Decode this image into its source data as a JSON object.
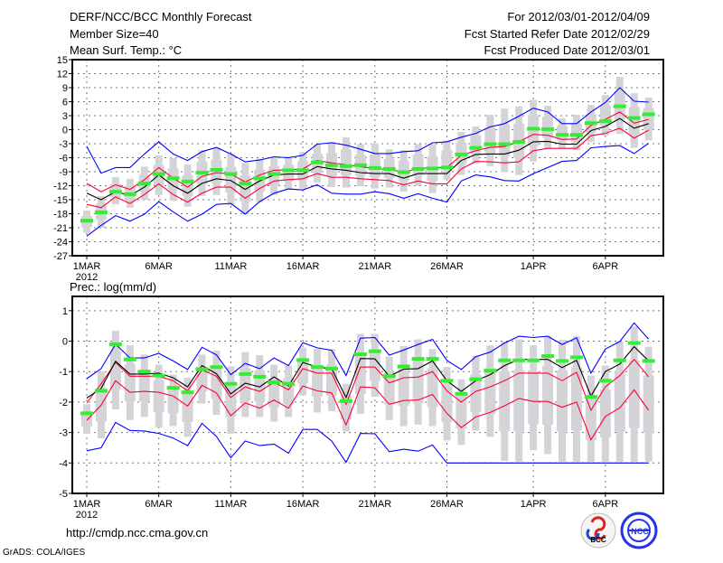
{
  "header": {
    "title": "DERF/NCC/BCC Monthly Forecast",
    "member_size": "Member Size=40",
    "variable": "Mean Surf. Temp.: °C",
    "period": "For 2012/03/01-2012/04/09",
    "started": "Fcst Started Refer Date 2012/02/29",
    "produced": "Fcst Produced Date 2012/03/01"
  },
  "footer": {
    "url": "http://cmdp.ncc.cma.gov.cn",
    "grads": "GrADS: COLA/IGES",
    "logo_bcc": "BCC",
    "logo_ncc": "NCC"
  },
  "colors": {
    "envelope": "#0000ff",
    "spread": "#ff0033",
    "mean": "#000000",
    "obs": "#33ee33",
    "range": "#d4d4d8"
  },
  "chart_data": [
    {
      "type": "line",
      "title": "Mean Surf. Temp.: °C",
      "xlabel": "",
      "ylabel": "",
      "ylim": [
        -27,
        15
      ],
      "yticks": [
        15,
        12,
        9,
        6,
        3,
        0,
        -3,
        -6,
        -9,
        -12,
        -15,
        -18,
        -21,
        -24,
        -27
      ],
      "xtick_days": [
        0,
        5,
        10,
        15,
        20,
        25,
        31,
        36
      ],
      "xtick_labels": [
        "1MAR",
        "6MAR",
        "11MAR",
        "16MAR",
        "21MAR",
        "26MAR",
        "1APR",
        "6APR"
      ],
      "year_label": "2012",
      "grid": true,
      "x_days": 40,
      "series": [
        {
          "name": "upper-envelope",
          "values": [
            -3.6,
            -9.3,
            -8.1,
            -8.1,
            -5.2,
            -2.6,
            -5.2,
            -6.6,
            -4.7,
            -3.8,
            -5.2,
            -6.9,
            -6.5,
            -5.8,
            -6,
            -5.5,
            -3.1,
            -2.8,
            -3.3,
            -4.2,
            -5.1,
            -5.1,
            -4.7,
            -4.5,
            -2.8,
            -2.6,
            -1.6,
            -0.8,
            0.6,
            1.3,
            2.9,
            4.6,
            3.8,
            1.3,
            1.3,
            3.8,
            5.8,
            9,
            6.1,
            5.9
          ]
        },
        {
          "name": "lower-envelope",
          "values": [
            -22.8,
            -20.5,
            -18.4,
            -19.6,
            -18.1,
            -15.4,
            -17.6,
            -19.6,
            -18.1,
            -16,
            -15.8,
            -18.1,
            -15.4,
            -13.6,
            -12.7,
            -12.9,
            -11.8,
            -13.6,
            -13.8,
            -13.8,
            -13.3,
            -13.7,
            -14.7,
            -13.7,
            -14.7,
            -15.5,
            -11,
            -9.7,
            -10.1,
            -10.9,
            -11,
            -9.4,
            -8.1,
            -6.8,
            -6.6,
            -3.9,
            -3.6,
            -3.4,
            -5.1,
            -2.9
          ]
        },
        {
          "name": "upper-spread",
          "values": [
            -11.5,
            -13.3,
            -11.8,
            -12.8,
            -10.7,
            -8.1,
            -10.4,
            -12.3,
            -10,
            -9.2,
            -9.5,
            -11.2,
            -9.7,
            -8.7,
            -8.6,
            -8.4,
            -6.6,
            -7.1,
            -7.5,
            -7.9,
            -8.4,
            -8.5,
            -9.1,
            -8.3,
            -8.1,
            -8.1,
            -5.5,
            -4.5,
            -3.8,
            -3.6,
            -2.6,
            -1,
            -1.2,
            -2.1,
            -2,
            0.9,
            2.2,
            3.8,
            1.4,
            2.2
          ]
        },
        {
          "name": "ensemble-mean",
          "values": [
            -13.6,
            -15,
            -13.3,
            -14.1,
            -12.3,
            -9.7,
            -12,
            -13.6,
            -11.5,
            -10.5,
            -10.9,
            -12.8,
            -11,
            -9.7,
            -9.5,
            -9.5,
            -7.9,
            -8.4,
            -8.7,
            -9.2,
            -9.4,
            -9.4,
            -10.4,
            -9.4,
            -9.4,
            -9.4,
            -6.6,
            -5.3,
            -5.2,
            -5.2,
            -4.4,
            -2.6,
            -2.5,
            -3.1,
            -3.1,
            -0.2,
            0.7,
            2.4,
            0.3,
            1.3
          ]
        },
        {
          "name": "lower-spread",
          "values": [
            -16,
            -16.7,
            -14.4,
            -15.8,
            -13.9,
            -11.6,
            -13.9,
            -15.5,
            -13.6,
            -12.3,
            -12.3,
            -14.7,
            -12.6,
            -11,
            -10.7,
            -10.5,
            -9.4,
            -10.2,
            -10.2,
            -10.5,
            -10.7,
            -10.9,
            -11.8,
            -11,
            -11.6,
            -11.6,
            -8.4,
            -6.8,
            -6.9,
            -7.1,
            -6.9,
            -4.5,
            -4,
            -4,
            -4,
            -1.3,
            -0.8,
            0.3,
            -1.8,
            -0.1
          ]
        },
        {
          "name": "observed",
          "values": [
            -19.5,
            -17.7,
            -13.3,
            -13.8,
            -11.5,
            -9.5,
            -10.4,
            -11.1,
            -9.2,
            -8.6,
            -9.5,
            -11.5,
            -10.4,
            -9.5,
            -8.7,
            -8.7,
            -7,
            -7.6,
            -7.8,
            -7.6,
            -8.2,
            -8.4,
            -9.1,
            -8.4,
            -8.3,
            -8.1,
            -5.3,
            -3.9,
            -3.1,
            -3.1,
            -2.6,
            0.2,
            0.1,
            -1.1,
            -1.1,
            1.4,
            1.8,
            5,
            2.5,
            3.3
          ]
        },
        {
          "name": "range-high",
          "values": [
            -17.3,
            -14.2,
            -10.2,
            -10.5,
            -7.9,
            -5.5,
            -6,
            -7.5,
            -4.4,
            -3.9,
            -5.2,
            -7.1,
            -6.2,
            -5.8,
            -5.8,
            -4.8,
            -3.1,
            -2.6,
            -1.6,
            -3.1,
            -2.9,
            -4.2,
            -4.4,
            -3.1,
            -3.1,
            -2.3,
            -0.5,
            0.7,
            3.2,
            4.5,
            5,
            6.4,
            5.1,
            2.4,
            3.2,
            5.3,
            7.4,
            11.3,
            7.8,
            6.9
          ]
        },
        {
          "name": "range-low",
          "values": [
            -22.1,
            -21,
            -16,
            -16.7,
            -15,
            -14,
            -15.2,
            -16.5,
            -14.2,
            -14,
            -16.2,
            -18.1,
            -15.5,
            -14,
            -12.8,
            -12.6,
            -11.3,
            -12.3,
            -12.4,
            -12.1,
            -12.6,
            -12.4,
            -13.3,
            -12,
            -13.6,
            -10.7,
            -9.7,
            -7.3,
            -7.8,
            -9.1,
            -9.7,
            -6.8,
            -4,
            -3.9,
            -4.4,
            -2.6,
            -1.3,
            -0.9,
            -3.9,
            -2.3
          ]
        }
      ]
    },
    {
      "type": "line",
      "title": "Prec.: log(mm/d)",
      "xlabel": "",
      "ylabel": "",
      "ylim": [
        -5,
        1.47
      ],
      "yticks": [
        1,
        0,
        -1,
        -2,
        -3,
        -4,
        -5
      ],
      "xtick_days": [
        0,
        5,
        10,
        15,
        20,
        25,
        31,
        36
      ],
      "xtick_labels": [
        "1MAR",
        "6MAR",
        "11MAR",
        "16MAR",
        "21MAR",
        "26MAR",
        "1APR",
        "6APR"
      ],
      "year_label": "2012",
      "grid": true,
      "x_days": 40,
      "series": [
        {
          "name": "upper-envelope",
          "values": [
            -1.23,
            -0.9,
            -0.1,
            -0.55,
            -0.55,
            -0.4,
            -0.65,
            -0.93,
            -0.2,
            -0.45,
            -1.1,
            -0.73,
            -0.9,
            -0.55,
            -0.8,
            -0.05,
            -0.22,
            -0.3,
            -1.13,
            0.1,
            0.12,
            -0.46,
            -0.29,
            -0.11,
            0.06,
            -0.63,
            -0.93,
            -0.51,
            -0.36,
            -0.06,
            0.16,
            0.12,
            0.16,
            -0.11,
            0.11,
            -1.05,
            -0.26,
            -0.01,
            0.6,
            0.07
          ]
        },
        {
          "name": "lower-envelope",
          "values": [
            -3.6,
            -3.5,
            -2.67,
            -2.93,
            -2.95,
            -3.03,
            -3.18,
            -3.43,
            -2.7,
            -3.13,
            -3.83,
            -3.28,
            -3.43,
            -3.38,
            -3.68,
            -2.9,
            -2.9,
            -3.28,
            -3.98,
            -3.03,
            -3.04,
            -3.63,
            -3.55,
            -3.61,
            -3.41,
            -4,
            -4,
            -4,
            -4,
            -4,
            -4,
            -4,
            -4,
            -4,
            -4,
            -4,
            -4,
            -4,
            -4,
            -4
          ]
        },
        {
          "name": "upper-spread",
          "values": [
            -2.03,
            -1.4,
            -0.7,
            -1.15,
            -1.15,
            -1.15,
            -1.3,
            -1.63,
            -0.95,
            -1.15,
            -1.85,
            -1.5,
            -1.65,
            -1.35,
            -1.6,
            -0.9,
            -1.05,
            -1.05,
            -2.07,
            -0.85,
            -0.85,
            -1.37,
            -1.2,
            -1.18,
            -1,
            -1.63,
            -2,
            -1.65,
            -1.5,
            -1.3,
            -1.05,
            -1.05,
            -1.05,
            -1.3,
            -1.02,
            -2.27,
            -1.5,
            -1.13,
            -0.6,
            -1.17
          ]
        },
        {
          "name": "ensemble-mean",
          "values": [
            -1.87,
            -1.55,
            -0.66,
            -1.08,
            -1.08,
            -1.05,
            -1.2,
            -1.5,
            -0.8,
            -1.07,
            -1.73,
            -1.38,
            -1.5,
            -1.17,
            -1.47,
            -0.7,
            -0.85,
            -0.9,
            -1.85,
            -0.57,
            -0.58,
            -1.15,
            -0.92,
            -0.9,
            -0.65,
            -1.3,
            -1.65,
            -1.3,
            -1.1,
            -0.8,
            -0.6,
            -0.6,
            -0.6,
            -0.87,
            -0.63,
            -1.8,
            -1,
            -0.75,
            -0.18,
            -0.65
          ]
        },
        {
          "name": "lower-spread",
          "values": [
            -2.6,
            -2.1,
            -1.3,
            -1.68,
            -1.65,
            -1.68,
            -1.8,
            -2.13,
            -1.45,
            -1.7,
            -2.45,
            -2.03,
            -2.2,
            -1.93,
            -2.2,
            -1.47,
            -1.63,
            -1.7,
            -2.75,
            -1.5,
            -1.53,
            -2.07,
            -1.95,
            -1.93,
            -1.75,
            -2.37,
            -2.84,
            -2.49,
            -2.34,
            -2.12,
            -1.88,
            -1.98,
            -1.98,
            -2.17,
            -2,
            -3.24,
            -2.47,
            -2.19,
            -1.6,
            -2.27
          ]
        },
        {
          "name": "observed",
          "values": [
            -2.37,
            -1.63,
            -0.1,
            -0.6,
            -1,
            -1.13,
            -1.53,
            -1.68,
            -0.92,
            -0.85,
            -1.4,
            -1.08,
            -1.17,
            -1.35,
            -1.4,
            -0.62,
            -0.85,
            -0.9,
            -1.97,
            -0.43,
            -0.33,
            -1.15,
            -0.83,
            -0.58,
            -0.58,
            -1.3,
            -1.73,
            -1.25,
            -0.97,
            -0.63,
            -0.63,
            -0.63,
            -0.49,
            -0.65,
            -0.53,
            -1.83,
            -1.3,
            -0.63,
            -0.06,
            -0.65
          ]
        },
        {
          "name": "range-high",
          "values": [
            -2.07,
            -1,
            0.34,
            -0.14,
            -0.44,
            -0.77,
            -1.1,
            -1.2,
            -0.44,
            -0.31,
            -0.83,
            -0.36,
            -0.46,
            -0.77,
            -0.8,
            -0.21,
            -0.26,
            -0.26,
            -1.4,
            0.24,
            0.24,
            -0.51,
            -0.16,
            0.06,
            -0.26,
            -0.85,
            -1.25,
            -0.48,
            -0.14,
            -0.01,
            0.06,
            -0.14,
            0.16,
            0.04,
            0.16,
            -1.13,
            -0.8,
            -0.01,
            0.48,
            -0.18
          ]
        },
        {
          "name": "range-low",
          "values": [
            -3.04,
            -3.19,
            -2.24,
            -2.59,
            -2.49,
            -2.84,
            -2.79,
            -3.14,
            -2.05,
            -2.42,
            -3.04,
            -2.49,
            -2.49,
            -2.64,
            -2.49,
            -1.78,
            -2.34,
            -2.3,
            -2.96,
            -2.39,
            -1.83,
            -2.59,
            -2.79,
            -2.74,
            -2.79,
            -3.26,
            -3.41,
            -2.94,
            -3.14,
            -3.93,
            -3.96,
            -3.58,
            -3.71,
            -3.96,
            -3.96,
            -3.96,
            -3.96,
            -3.96,
            -3.96,
            -3.96
          ]
        }
      ]
    }
  ]
}
